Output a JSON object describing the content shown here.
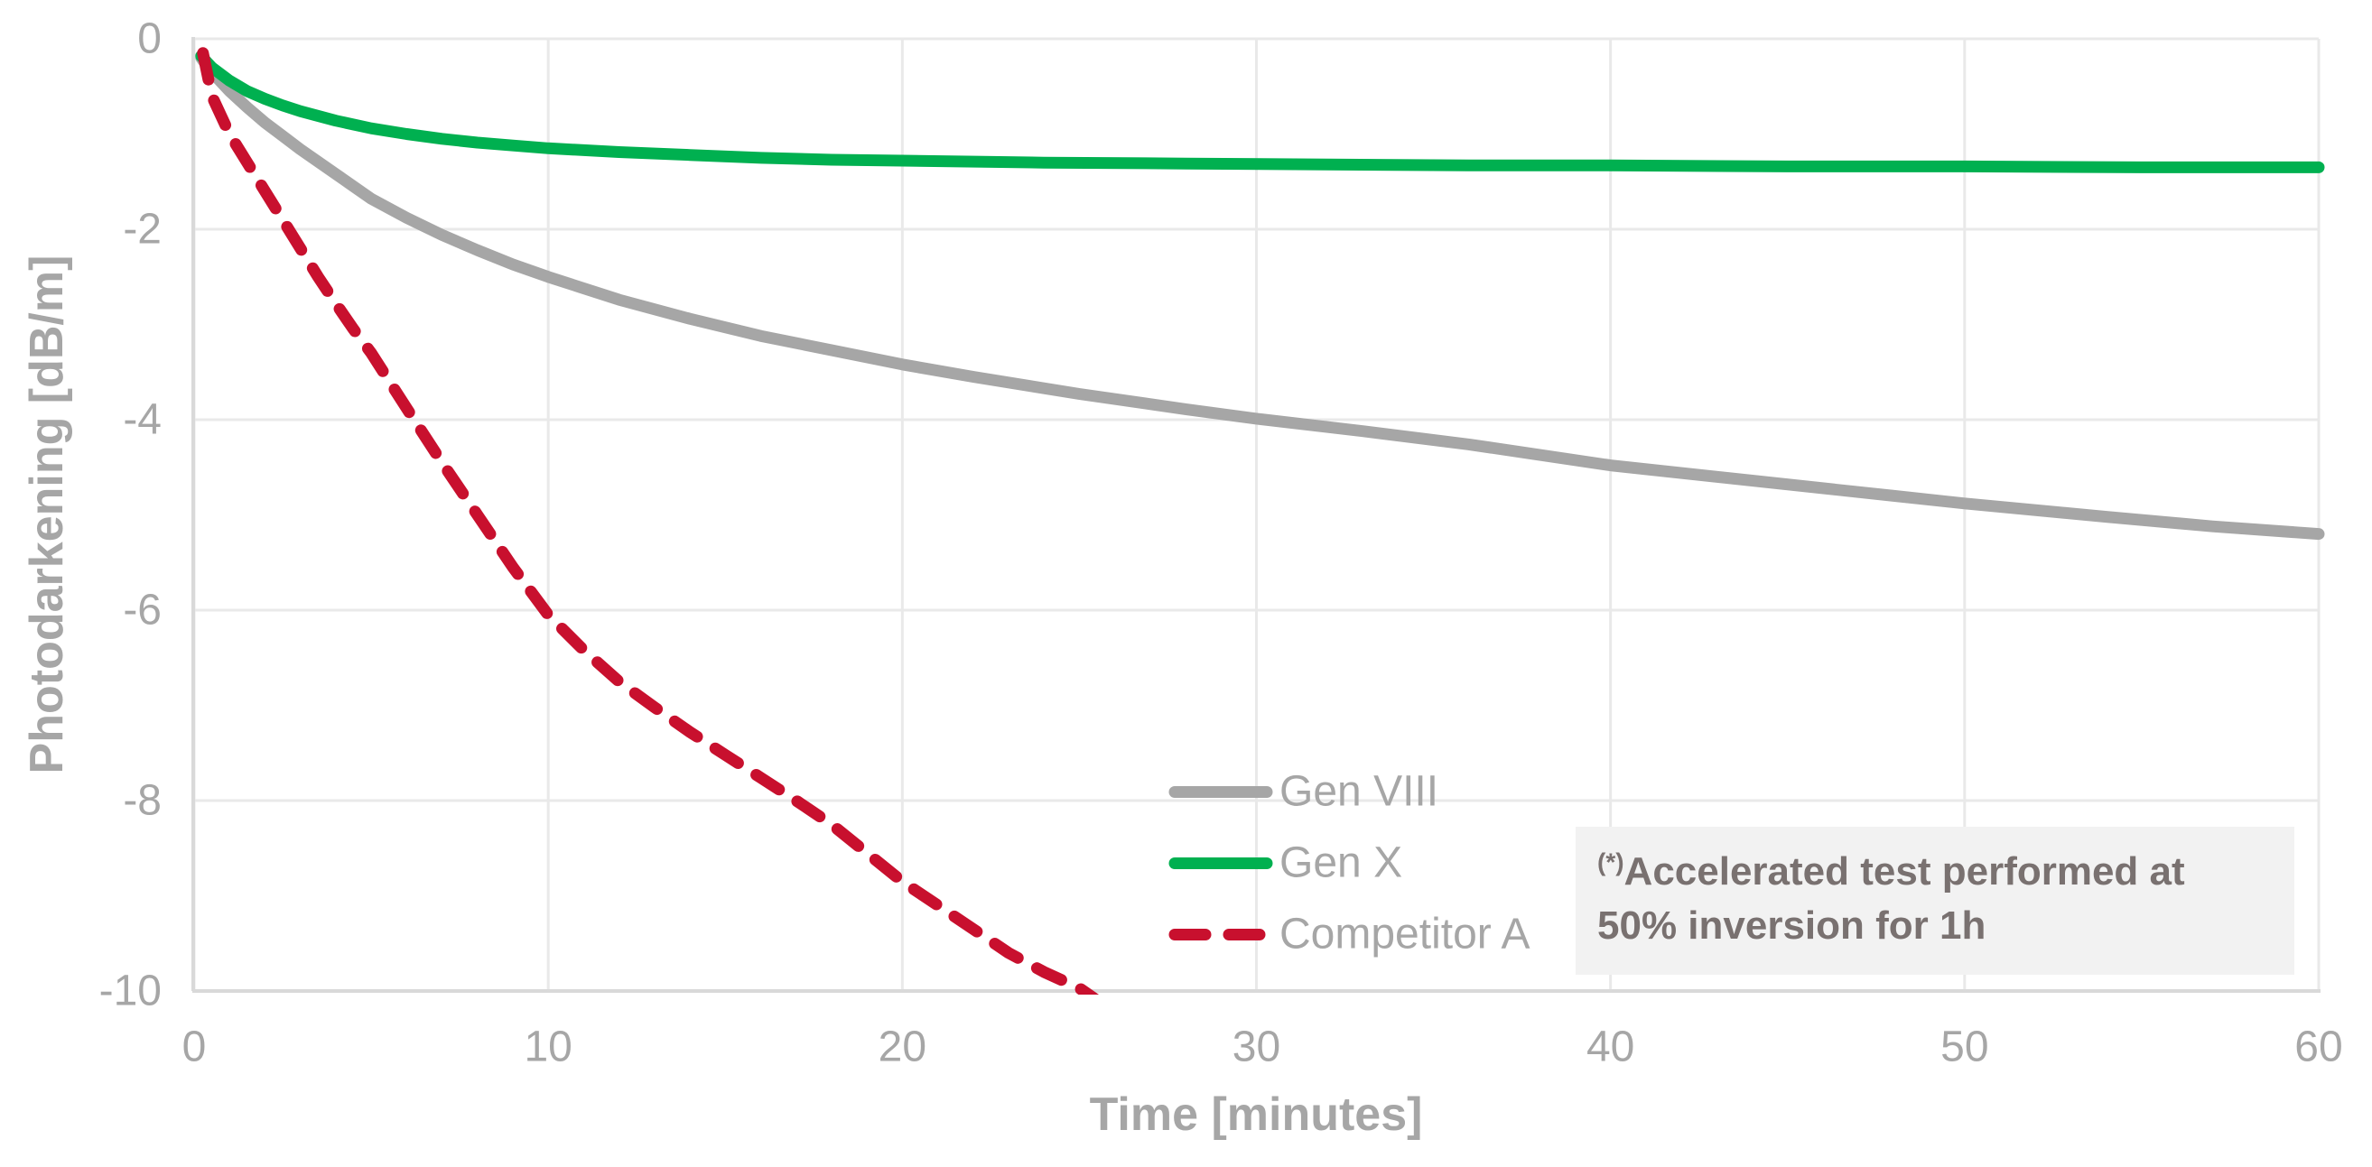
{
  "chart_data": {
    "type": "line",
    "title": "",
    "xlabel": "Time [minutes]",
    "ylabel": "Photodarkening [dB/m]",
    "xlim": [
      0,
      60
    ],
    "ylim": [
      -10,
      0
    ],
    "x_ticks": [
      0,
      10,
      20,
      30,
      40,
      50,
      60
    ],
    "y_ticks": [
      0,
      -2,
      -4,
      -6,
      -8,
      -10
    ],
    "grid": true,
    "legend_position": "inside-bottom-center",
    "series": [
      {
        "name": "Gen VIII",
        "color": "#a6a6a6",
        "style": "solid",
        "points": [
          [
            0.2,
            -0.2
          ],
          [
            0.5,
            -0.35
          ],
          [
            1,
            -0.55
          ],
          [
            1.5,
            -0.72
          ],
          [
            2,
            -0.88
          ],
          [
            2.5,
            -1.02
          ],
          [
            3,
            -1.16
          ],
          [
            4,
            -1.42
          ],
          [
            5,
            -1.68
          ],
          [
            6,
            -1.88
          ],
          [
            7,
            -2.06
          ],
          [
            8,
            -2.22
          ],
          [
            9,
            -2.37
          ],
          [
            10,
            -2.5
          ],
          [
            12,
            -2.74
          ],
          [
            14,
            -2.94
          ],
          [
            16,
            -3.12
          ],
          [
            18,
            -3.27
          ],
          [
            20,
            -3.42
          ],
          [
            22,
            -3.55
          ],
          [
            25,
            -3.73
          ],
          [
            28,
            -3.89
          ],
          [
            30,
            -3.99
          ],
          [
            33,
            -4.12
          ],
          [
            36,
            -4.26
          ],
          [
            40,
            -4.48
          ],
          [
            44,
            -4.64
          ],
          [
            48,
            -4.8
          ],
          [
            50,
            -4.88
          ],
          [
            54,
            -5.02
          ],
          [
            57,
            -5.12
          ],
          [
            60,
            -5.2
          ]
        ]
      },
      {
        "name": "Gen X",
        "color": "#00b050",
        "style": "solid",
        "points": [
          [
            0.2,
            -0.18
          ],
          [
            0.5,
            -0.3
          ],
          [
            1,
            -0.44
          ],
          [
            1.5,
            -0.55
          ],
          [
            2,
            -0.63
          ],
          [
            2.5,
            -0.7
          ],
          [
            3,
            -0.76
          ],
          [
            4,
            -0.86
          ],
          [
            5,
            -0.94
          ],
          [
            6,
            -1.0
          ],
          [
            7,
            -1.05
          ],
          [
            8,
            -1.09
          ],
          [
            9,
            -1.12
          ],
          [
            10,
            -1.15
          ],
          [
            12,
            -1.19
          ],
          [
            14,
            -1.22
          ],
          [
            16,
            -1.25
          ],
          [
            18,
            -1.27
          ],
          [
            20,
            -1.28
          ],
          [
            24,
            -1.3
          ],
          [
            28,
            -1.31
          ],
          [
            32,
            -1.32
          ],
          [
            36,
            -1.33
          ],
          [
            40,
            -1.33
          ],
          [
            45,
            -1.34
          ],
          [
            50,
            -1.34
          ],
          [
            55,
            -1.35
          ],
          [
            60,
            -1.35
          ]
        ]
      },
      {
        "name": "Competitor A",
        "color": "#c8102e",
        "style": "dashed",
        "points": [
          [
            0.25,
            -0.15
          ],
          [
            0.5,
            -0.6
          ],
          [
            1,
            -1.0
          ],
          [
            1.5,
            -1.3
          ],
          [
            2,
            -1.6
          ],
          [
            2.5,
            -1.9
          ],
          [
            3,
            -2.2
          ],
          [
            3.5,
            -2.5
          ],
          [
            4,
            -2.78
          ],
          [
            4.5,
            -3.05
          ],
          [
            5,
            -3.3
          ],
          [
            6,
            -3.88
          ],
          [
            7,
            -4.45
          ],
          [
            8,
            -5.0
          ],
          [
            9,
            -5.55
          ],
          [
            10,
            -6.05
          ],
          [
            11,
            -6.42
          ],
          [
            12,
            -6.75
          ],
          [
            13,
            -7.02
          ],
          [
            14,
            -7.28
          ],
          [
            15,
            -7.52
          ],
          [
            16,
            -7.76
          ],
          [
            17,
            -8.0
          ],
          [
            18,
            -8.25
          ],
          [
            19,
            -8.55
          ],
          [
            20,
            -8.85
          ],
          [
            21,
            -9.1
          ],
          [
            22,
            -9.35
          ],
          [
            23,
            -9.6
          ],
          [
            24,
            -9.8
          ],
          [
            25,
            -9.97
          ],
          [
            25.5,
            -10.1
          ]
        ]
      }
    ],
    "annotation": {
      "prefix": "(*)",
      "line1": "Accelerated test performed at",
      "line2": "50% inversion for 1h",
      "full_text": "(*)Accelerated test performed at 50% inversion for 1h"
    }
  },
  "colors": {
    "grid": "#e9e9e9",
    "axis": "#d9d9d9",
    "tick_text": "#a6a6a6",
    "axis_title_text": "#a6a6a6",
    "legend_text": "#a6a6a6",
    "annotation_bg": "#f2f2f2",
    "annotation_text": "#797170",
    "background": "#ffffff"
  }
}
